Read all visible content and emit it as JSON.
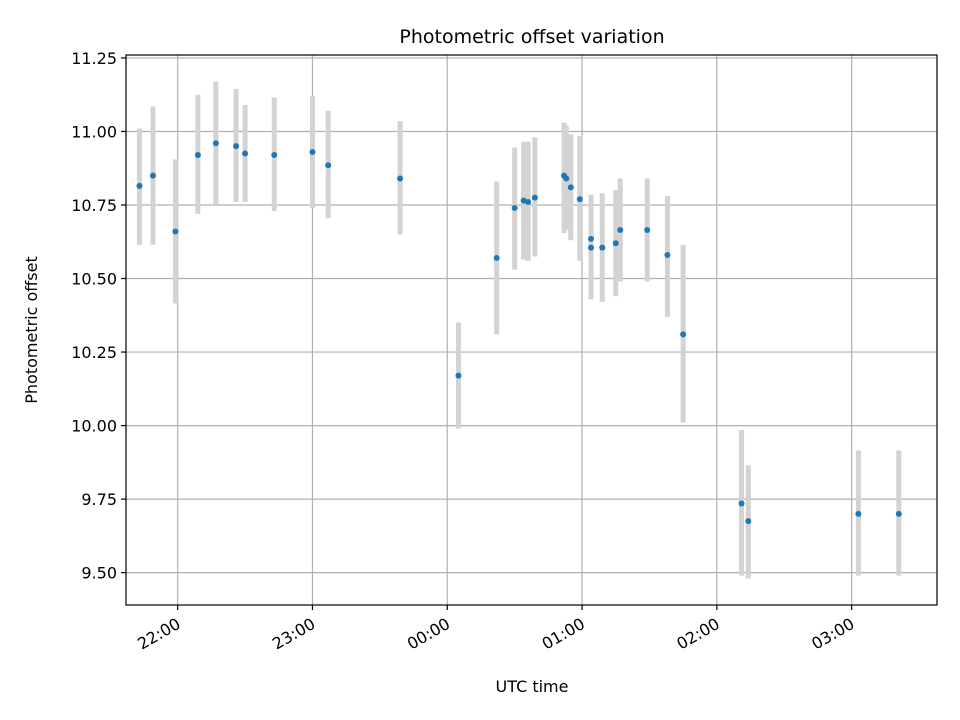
{
  "chart_data": {
    "type": "scatter",
    "title": "Photometric offset variation",
    "xlabel": "UTC time",
    "ylabel": "Photometric offset",
    "x_axis": {
      "kind": "time",
      "min": "21:37",
      "max": "03:38",
      "ticks": [
        "22:00",
        "23:00",
        "00:00",
        "01:00",
        "02:00",
        "03:00"
      ]
    },
    "y_axis": {
      "min": 9.39,
      "max": 11.26,
      "ticks": [
        "9.50",
        "9.75",
        "10.00",
        "10.25",
        "10.50",
        "10.75",
        "11.00",
        "11.25"
      ]
    },
    "grid": true,
    "colors": {
      "point": "#1f77b4",
      "error_bar": "#d3d3d3",
      "grid": "#b0b0b0"
    },
    "points": [
      {
        "t": "21:43",
        "y": 10.815,
        "lo": 10.615,
        "hi": 11.01
      },
      {
        "t": "21:49",
        "y": 10.85,
        "lo": 10.615,
        "hi": 11.085
      },
      {
        "t": "21:59",
        "y": 10.66,
        "lo": 10.415,
        "hi": 10.905
      },
      {
        "t": "22:09",
        "y": 10.92,
        "lo": 10.72,
        "hi": 11.125
      },
      {
        "t": "22:17",
        "y": 10.96,
        "lo": 10.75,
        "hi": 11.17
      },
      {
        "t": "22:26",
        "y": 10.95,
        "lo": 10.76,
        "hi": 11.145
      },
      {
        "t": "22:30",
        "y": 10.925,
        "lo": 10.76,
        "hi": 11.09
      },
      {
        "t": "22:43",
        "y": 10.92,
        "lo": 10.73,
        "hi": 11.115
      },
      {
        "t": "23:00",
        "y": 10.93,
        "lo": 10.74,
        "hi": 11.12
      },
      {
        "t": "23:07",
        "y": 10.885,
        "lo": 10.705,
        "hi": 11.07
      },
      {
        "t": "23:39",
        "y": 10.84,
        "lo": 10.65,
        "hi": 11.035
      },
      {
        "t": "00:05",
        "y": 10.17,
        "lo": 9.99,
        "hi": 10.35
      },
      {
        "t": "00:22",
        "y": 10.57,
        "lo": 10.31,
        "hi": 10.83
      },
      {
        "t": "00:30",
        "y": 10.74,
        "lo": 10.53,
        "hi": 10.945
      },
      {
        "t": "00:34",
        "y": 10.765,
        "lo": 10.565,
        "hi": 10.965
      },
      {
        "t": "00:36",
        "y": 10.76,
        "lo": 10.56,
        "hi": 10.965
      },
      {
        "t": "00:39",
        "y": 10.775,
        "lo": 10.575,
        "hi": 10.98
      },
      {
        "t": "00:52",
        "y": 10.85,
        "lo": 10.655,
        "hi": 11.03
      },
      {
        "t": "00:53",
        "y": 10.84,
        "lo": 10.665,
        "hi": 11.02
      },
      {
        "t": "00:55",
        "y": 10.81,
        "lo": 10.63,
        "hi": 10.99
      },
      {
        "t": "00:59",
        "y": 10.77,
        "lo": 10.56,
        "hi": 10.985
      },
      {
        "t": "01:04",
        "y": 10.635,
        "lo": 10.43,
        "hi": 10.785
      },
      {
        "t": "01:04",
        "y": 10.605,
        "lo": 10.43,
        "hi": 10.785
      },
      {
        "t": "01:09",
        "y": 10.605,
        "lo": 10.42,
        "hi": 10.79
      },
      {
        "t": "01:15",
        "y": 10.62,
        "lo": 10.44,
        "hi": 10.8
      },
      {
        "t": "01:17",
        "y": 10.665,
        "lo": 10.49,
        "hi": 10.84
      },
      {
        "t": "01:29",
        "y": 10.665,
        "lo": 10.49,
        "hi": 10.84
      },
      {
        "t": "01:38",
        "y": 10.58,
        "lo": 10.37,
        "hi": 10.78
      },
      {
        "t": "01:45",
        "y": 10.31,
        "lo": 10.01,
        "hi": 10.615
      },
      {
        "t": "02:11",
        "y": 9.735,
        "lo": 9.49,
        "hi": 9.985
      },
      {
        "t": "02:14",
        "y": 9.675,
        "lo": 9.48,
        "hi": 9.865
      },
      {
        "t": "03:03",
        "y": 9.7,
        "lo": 9.49,
        "hi": 9.915
      },
      {
        "t": "03:21",
        "y": 9.7,
        "lo": 9.49,
        "hi": 9.915
      }
    ]
  }
}
